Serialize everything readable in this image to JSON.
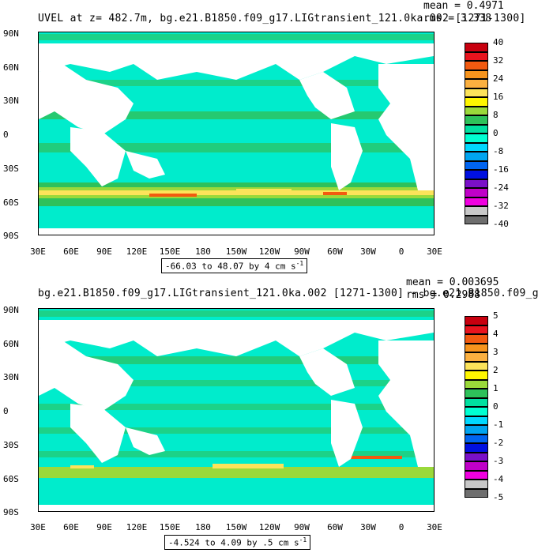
{
  "panels": [
    {
      "title": "UVEL at z= 482.7m, bg.e21.B1850.f09_g17.LIGtransient_121.0ka.002 [1271-1300]",
      "stats": {
        "mean": "mean = 0.4971",
        "rms": "rms = 3.338"
      },
      "range": "-66.03 to 48.07 by 4 cm s",
      "range_sup": "-1",
      "colorbar_labels": [
        "40",
        "32",
        "24",
        "16",
        "8",
        "0",
        "-8",
        "-16",
        "-24",
        "-32",
        "-40"
      ]
    },
    {
      "title": "bg.e21.B1850.f09_g17.LIGtransient_121.0ka.002 [1271-1300] - bg.e21.B1850.f09_g",
      "stats": {
        "mean": "mean = 0.003695",
        "rms": "rms = 0.2988"
      },
      "range": "-4.524 to 4.09 by .5 cm s",
      "range_sup": "-1",
      "colorbar_labels": [
        "5",
        "4",
        "3",
        "2",
        "1",
        "0",
        "-1",
        "-2",
        "-3",
        "-4",
        "-5"
      ]
    }
  ],
  "lat_ticks": [
    "90N",
    "60N",
    "30N",
    "0",
    "30S",
    "60S",
    "90S"
  ],
  "lon_ticks": [
    "30E",
    "60E",
    "90E",
    "120E",
    "150E",
    "180",
    "150W",
    "120W",
    "90W",
    "60W",
    "30W",
    "0",
    "30E"
  ],
  "colorbar_colors": [
    "#c8000f",
    "#e8141e",
    "#f25a10",
    "#f7941d",
    "#fbb040",
    "#fce35a",
    "#fff600",
    "#9ad93a",
    "#2ec15a",
    "#00e0a0",
    "#00ffd2",
    "#00d8ff",
    "#00a4f0",
    "#0064f0",
    "#0010e0",
    "#7a10c8",
    "#c000c8",
    "#f000e0",
    "#c8c8c8",
    "#6e6e6e"
  ],
  "colors": {
    "ocean": "#00eccc",
    "land": "#ffffff",
    "band_warm": "#fce35a",
    "band_hot": "#f25a10",
    "band_green": "#2ec15a"
  }
}
